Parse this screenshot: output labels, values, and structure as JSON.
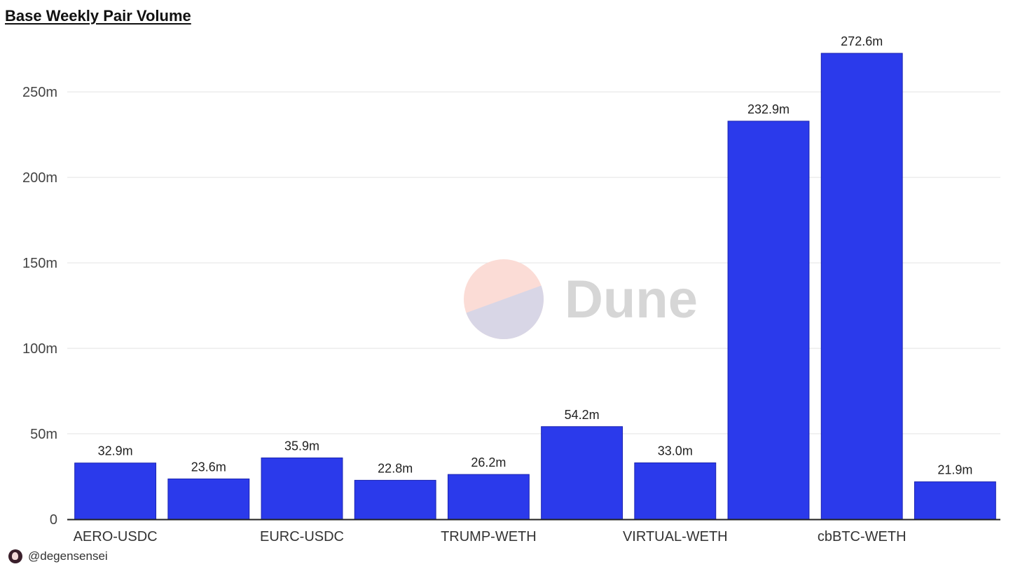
{
  "chart_data": {
    "type": "bar",
    "title": "Base Weekly Pair Volume",
    "xlabel": "",
    "ylabel": "",
    "categories": [
      "AERO-USDC",
      "",
      "EURC-USDC",
      "",
      "TRUMP-WETH",
      "",
      "VIRTUAL-WETH",
      "",
      "cbBTC-WETH",
      ""
    ],
    "values": [
      32.9,
      23.6,
      35.9,
      22.8,
      26.2,
      54.2,
      33.0,
      232.9,
      272.6,
      21.9
    ],
    "data_labels": [
      "32.9m",
      "23.6m",
      "35.9m",
      "22.8m",
      "26.2m",
      "54.2m",
      "33.0m",
      "232.9m",
      "272.6m",
      "21.9m"
    ],
    "ylim": [
      0,
      280
    ],
    "yticks": [
      0,
      50,
      100,
      150,
      200,
      250
    ],
    "ytick_labels": [
      "0",
      "50m",
      "100m",
      "150m",
      "200m",
      "250m"
    ],
    "grid": true,
    "bar_color": "#2b3aeb"
  },
  "watermark": {
    "text": "Dune",
    "colors": {
      "top": "#fbdcd6",
      "bottom": "#d8d6e6",
      "text": "#d6d6d6"
    }
  },
  "footer": {
    "handle": "@degensensei"
  }
}
